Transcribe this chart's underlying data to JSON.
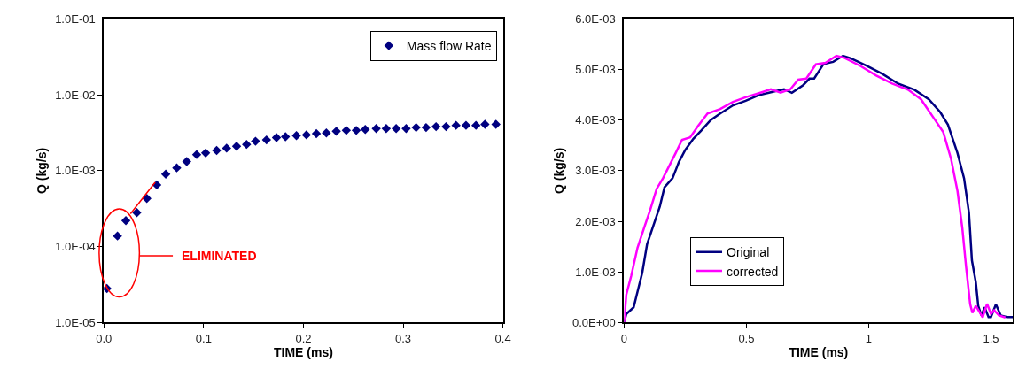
{
  "chart_data": [
    {
      "type": "scatter",
      "xlabel": "TIME (ms)",
      "ylabel": "Q (kg/s)",
      "log": "y",
      "marker": "diamond",
      "legend": "top right",
      "xlim": [
        0,
        0.4
      ],
      "xticks": [
        {
          "value": 0,
          "label": "0.0"
        },
        {
          "value": 0.1,
          "label": "0.1"
        },
        {
          "value": 0.2,
          "label": "0.2"
        },
        {
          "value": 0.3,
          "label": "0.3"
        },
        {
          "value": 0.4,
          "label": "0.4"
        }
      ],
      "ylim": [
        1e-05,
        0.1
      ],
      "yticks": [
        {
          "value": 1e-05,
          "label": "1.0E-05"
        },
        {
          "value": 0.0001,
          "label": "1.0E-04"
        },
        {
          "value": 0.001,
          "label": "1.0E-03"
        },
        {
          "value": 0.01,
          "label": "1.0E-02"
        },
        {
          "value": 0.1,
          "label": "1.0E-01"
        }
      ],
      "annotations": [
        "ELIMINATED"
      ],
      "series": [
        {
          "name": "Mass flow Rate",
          "color": "#000080",
          "x": [
            0.003,
            0.0136,
            0.022,
            0.033,
            0.043,
            0.053,
            0.062,
            0.073,
            0.083,
            0.093,
            0.102,
            0.113,
            0.123,
            0.133,
            0.143,
            0.152,
            0.163,
            0.173,
            0.182,
            0.193,
            0.203,
            0.213,
            0.223,
            0.233,
            0.243,
            0.253,
            0.262,
            0.273,
            0.283,
            0.293,
            0.303,
            0.313,
            0.323,
            0.333,
            0.343,
            0.353,
            0.363,
            0.373,
            0.382,
            0.393
          ],
          "values": [
            2.8e-05,
            0.000138,
            0.00022,
            0.00028,
            0.00043,
            0.00065,
            0.0009,
            0.00109,
            0.00132,
            0.00163,
            0.00171,
            0.00185,
            0.00198,
            0.0021,
            0.00222,
            0.00244,
            0.00254,
            0.00272,
            0.0028,
            0.0029,
            0.00296,
            0.00308,
            0.00314,
            0.0033,
            0.00339,
            0.00339,
            0.00349,
            0.00359,
            0.00359,
            0.00359,
            0.00359,
            0.0037,
            0.0037,
            0.0038,
            0.0038,
            0.00395,
            0.00395,
            0.00395,
            0.00407,
            0.00407
          ]
        }
      ]
    },
    {
      "type": "line",
      "xlabel": "TIME (ms)",
      "ylabel": "Q (kg/s)",
      "legend": "bottom left",
      "marker": "none",
      "line_style": "solid",
      "xlim": [
        0,
        1.59
      ],
      "xticks": [
        0,
        0.5,
        1,
        1.5
      ],
      "ylim": [
        0,
        0.006
      ],
      "yticks": [
        {
          "value": 0,
          "label": "0.0E+00"
        },
        {
          "value": 0.001,
          "label": "1.0E-03"
        },
        {
          "value": 0.002,
          "label": "2.0E-03"
        },
        {
          "value": 0.003,
          "label": "3.0E-03"
        },
        {
          "value": 0.004,
          "label": "4.0E-03"
        },
        {
          "value": 0.005,
          "label": "5.0E-03"
        },
        {
          "value": 0.006,
          "label": "6.0E-03"
        }
      ],
      "series": [
        {
          "name": "Original",
          "color": "#000080",
          "x": [
            0,
            0.009,
            0.039,
            0.055,
            0.074,
            0.094,
            0.12,
            0.146,
            0.165,
            0.198,
            0.224,
            0.25,
            0.283,
            0.315,
            0.354,
            0.393,
            0.445,
            0.497,
            0.55,
            0.6,
            0.654,
            0.686,
            0.732,
            0.758,
            0.777,
            0.816,
            0.855,
            0.895,
            0.927,
            0.992,
            1.057,
            1.12,
            1.187,
            1.246,
            1.292,
            1.324,
            1.363,
            1.39,
            1.41,
            1.422,
            1.438,
            1.448,
            1.461,
            1.474,
            1.49,
            1.5,
            1.52,
            1.54,
            1.565,
            1.59
          ],
          "values": [
            0,
            0.00017,
            0.0003,
            0.00061,
            0.00098,
            0.00155,
            0.00192,
            0.00229,
            0.00267,
            0.00285,
            0.00317,
            0.00341,
            0.00363,
            0.00379,
            0.004,
            0.00413,
            0.00429,
            0.00438,
            0.00449,
            0.00455,
            0.00461,
            0.00454,
            0.00469,
            0.00482,
            0.00482,
            0.00511,
            0.00515,
            0.00527,
            0.00522,
            0.00507,
            0.00491,
            0.00472,
            0.0046,
            0.00441,
            0.00416,
            0.00391,
            0.00335,
            0.00285,
            0.00217,
            0.00123,
            0.0008,
            0.00033,
            0.00014,
            0.0003,
            0.00011,
            0.00011,
            0.00036,
            0.00014,
            0.00011,
            0.00011
          ]
        },
        {
          "name": "corrected",
          "color": "#ff00ff",
          "x": [
            0,
            0.009,
            0.029,
            0.055,
            0.081,
            0.107,
            0.133,
            0.159,
            0.185,
            0.211,
            0.237,
            0.27,
            0.302,
            0.341,
            0.393,
            0.445,
            0.497,
            0.563,
            0.6,
            0.64,
            0.68,
            0.712,
            0.745,
            0.784,
            0.823,
            0.868,
            0.901,
            0.966,
            1.031,
            1.096,
            1.161,
            1.214,
            1.266,
            1.305,
            1.337,
            1.363,
            1.383,
            1.398,
            1.415,
            1.424,
            1.438,
            1.453,
            1.466,
            1.484,
            1.5,
            1.513,
            1.533,
            1.559
          ],
          "values": [
            0,
            0.00055,
            0.00092,
            0.00148,
            0.00186,
            0.00223,
            0.00264,
            0.00285,
            0.0031,
            0.00335,
            0.00361,
            0.00366,
            0.00388,
            0.00413,
            0.00422,
            0.00436,
            0.00445,
            0.00455,
            0.00461,
            0.00454,
            0.00461,
            0.0048,
            0.00482,
            0.0051,
            0.00513,
            0.00527,
            0.00523,
            0.00507,
            0.00488,
            0.00472,
            0.0046,
            0.00441,
            0.00404,
            0.00376,
            0.00323,
            0.0026,
            0.00186,
            0.00111,
            0.00036,
            0.00019,
            0.00033,
            0.00021,
            0.0001,
            0.00037,
            0.00017,
            0.00024,
            0.00014,
            0.0001
          ]
        }
      ]
    }
  ]
}
